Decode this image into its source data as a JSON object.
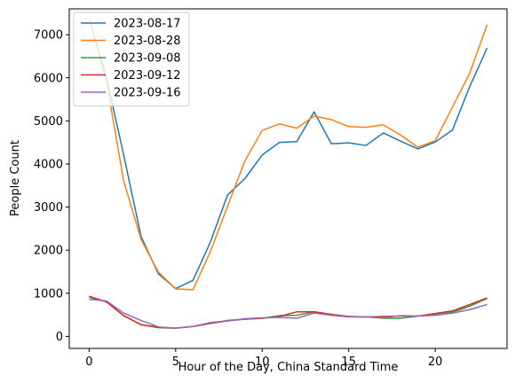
{
  "chart_data": {
    "type": "line",
    "xlabel": "Hour of the Day, China Standard Time",
    "ylabel": "People Count",
    "xlim": [
      -1.15,
      24.15
    ],
    "ylim": [
      -280,
      7600
    ],
    "xticks": [
      0,
      5,
      10,
      15,
      20
    ],
    "yticks": [
      0,
      1000,
      2000,
      3000,
      4000,
      5000,
      6000,
      7000
    ],
    "grid": false,
    "legend_position": "top-left",
    "x": [
      0,
      1,
      2,
      3,
      4,
      5,
      6,
      7,
      8,
      9,
      10,
      11,
      12,
      13,
      14,
      15,
      16,
      17,
      18,
      19,
      20,
      21,
      22,
      23
    ],
    "series": [
      {
        "name": "2023-08-17",
        "color": "#1f77b4",
        "values": [
          7370,
          6010,
          4200,
          2320,
          1450,
          1110,
          1300,
          2180,
          3280,
          3660,
          4210,
          4500,
          4520,
          5210,
          4470,
          4490,
          4430,
          4720,
          4530,
          4350,
          4510,
          4790,
          5800,
          6690
        ]
      },
      {
        "name": "2023-08-28",
        "color": "#ff7f0e",
        "values": [
          7370,
          5920,
          3600,
          2250,
          1490,
          1100,
          1080,
          1960,
          3020,
          4070,
          4780,
          4930,
          4830,
          5110,
          5030,
          4870,
          4850,
          4910,
          4670,
          4390,
          4540,
          5320,
          6110,
          7230
        ]
      },
      {
        "name": "2023-09-08",
        "color": "#2ca02c",
        "values": [
          910,
          800,
          480,
          270,
          200,
          190,
          230,
          300,
          370,
          400,
          420,
          480,
          490,
          570,
          510,
          460,
          450,
          420,
          420,
          470,
          500,
          560,
          700,
          880
        ]
      },
      {
        "name": "2023-09-12",
        "color": "#d62728",
        "values": [
          930,
          800,
          480,
          270,
          210,
          190,
          230,
          300,
          360,
          400,
          420,
          460,
          570,
          570,
          510,
          460,
          450,
          460,
          470,
          470,
          530,
          590,
          740,
          890
        ]
      },
      {
        "name": "2023-09-16",
        "color": "#9467bd",
        "values": [
          860,
          820,
          540,
          370,
          220,
          190,
          230,
          320,
          360,
          410,
          430,
          440,
          420,
          540,
          490,
          450,
          450,
          430,
          480,
          470,
          490,
          540,
          620,
          740
        ]
      }
    ]
  }
}
